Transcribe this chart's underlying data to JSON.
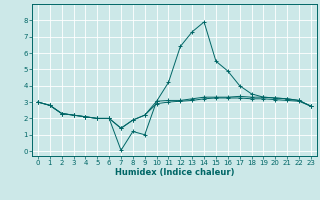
{
  "title": "",
  "xlabel": "Humidex (Indice chaleur)",
  "ylabel": "",
  "background_color": "#cce8e8",
  "grid_color": "#ffffff",
  "line_color": "#006666",
  "xlim": [
    -0.5,
    23.5
  ],
  "ylim": [
    -0.3,
    9.0
  ],
  "xticks": [
    0,
    1,
    2,
    3,
    4,
    5,
    6,
    7,
    8,
    9,
    10,
    11,
    12,
    13,
    14,
    15,
    16,
    17,
    18,
    19,
    20,
    21,
    22,
    23
  ],
  "yticks": [
    0,
    1,
    2,
    3,
    4,
    5,
    6,
    7,
    8
  ],
  "lines": [
    {
      "x": [
        0,
        1,
        2,
        3,
        4,
        5,
        6,
        7,
        8,
        9,
        10,
        11,
        12,
        13,
        14,
        15,
        16,
        17,
        18,
        19,
        20,
        21,
        22,
        23
      ],
      "y": [
        3.0,
        2.8,
        2.3,
        2.2,
        2.1,
        2.0,
        2.0,
        0.05,
        1.2,
        1.0,
        3.05,
        3.1,
        3.1,
        3.2,
        3.3,
        3.3,
        3.3,
        3.35,
        3.3,
        3.3,
        3.25,
        3.2,
        3.1,
        2.75
      ]
    },
    {
      "x": [
        0,
        1,
        2,
        3,
        4,
        5,
        6,
        7,
        8,
        9,
        10,
        11,
        12,
        13,
        14,
        15,
        16,
        17,
        18,
        19,
        20,
        21,
        22,
        23
      ],
      "y": [
        3.0,
        2.8,
        2.3,
        2.2,
        2.1,
        2.0,
        2.0,
        1.4,
        1.9,
        2.2,
        2.9,
        3.0,
        3.05,
        3.1,
        3.2,
        3.25,
        3.25,
        3.25,
        3.2,
        3.2,
        3.15,
        3.1,
        3.05,
        2.75
      ]
    },
    {
      "x": [
        0,
        1,
        2,
        3,
        4,
        5,
        6,
        7,
        8,
        9,
        10,
        11,
        12,
        13,
        14,
        15,
        16,
        17,
        18,
        19,
        20,
        21,
        22,
        23
      ],
      "y": [
        3.0,
        2.8,
        2.3,
        2.2,
        2.1,
        2.0,
        2.0,
        1.4,
        1.9,
        2.2,
        3.05,
        4.2,
        6.4,
        7.3,
        7.9,
        5.5,
        4.9,
        4.0,
        3.5,
        3.3,
        3.25,
        3.2,
        3.1,
        2.75
      ]
    }
  ],
  "tick_fontsize": 5.0,
  "xlabel_fontsize": 6.0
}
